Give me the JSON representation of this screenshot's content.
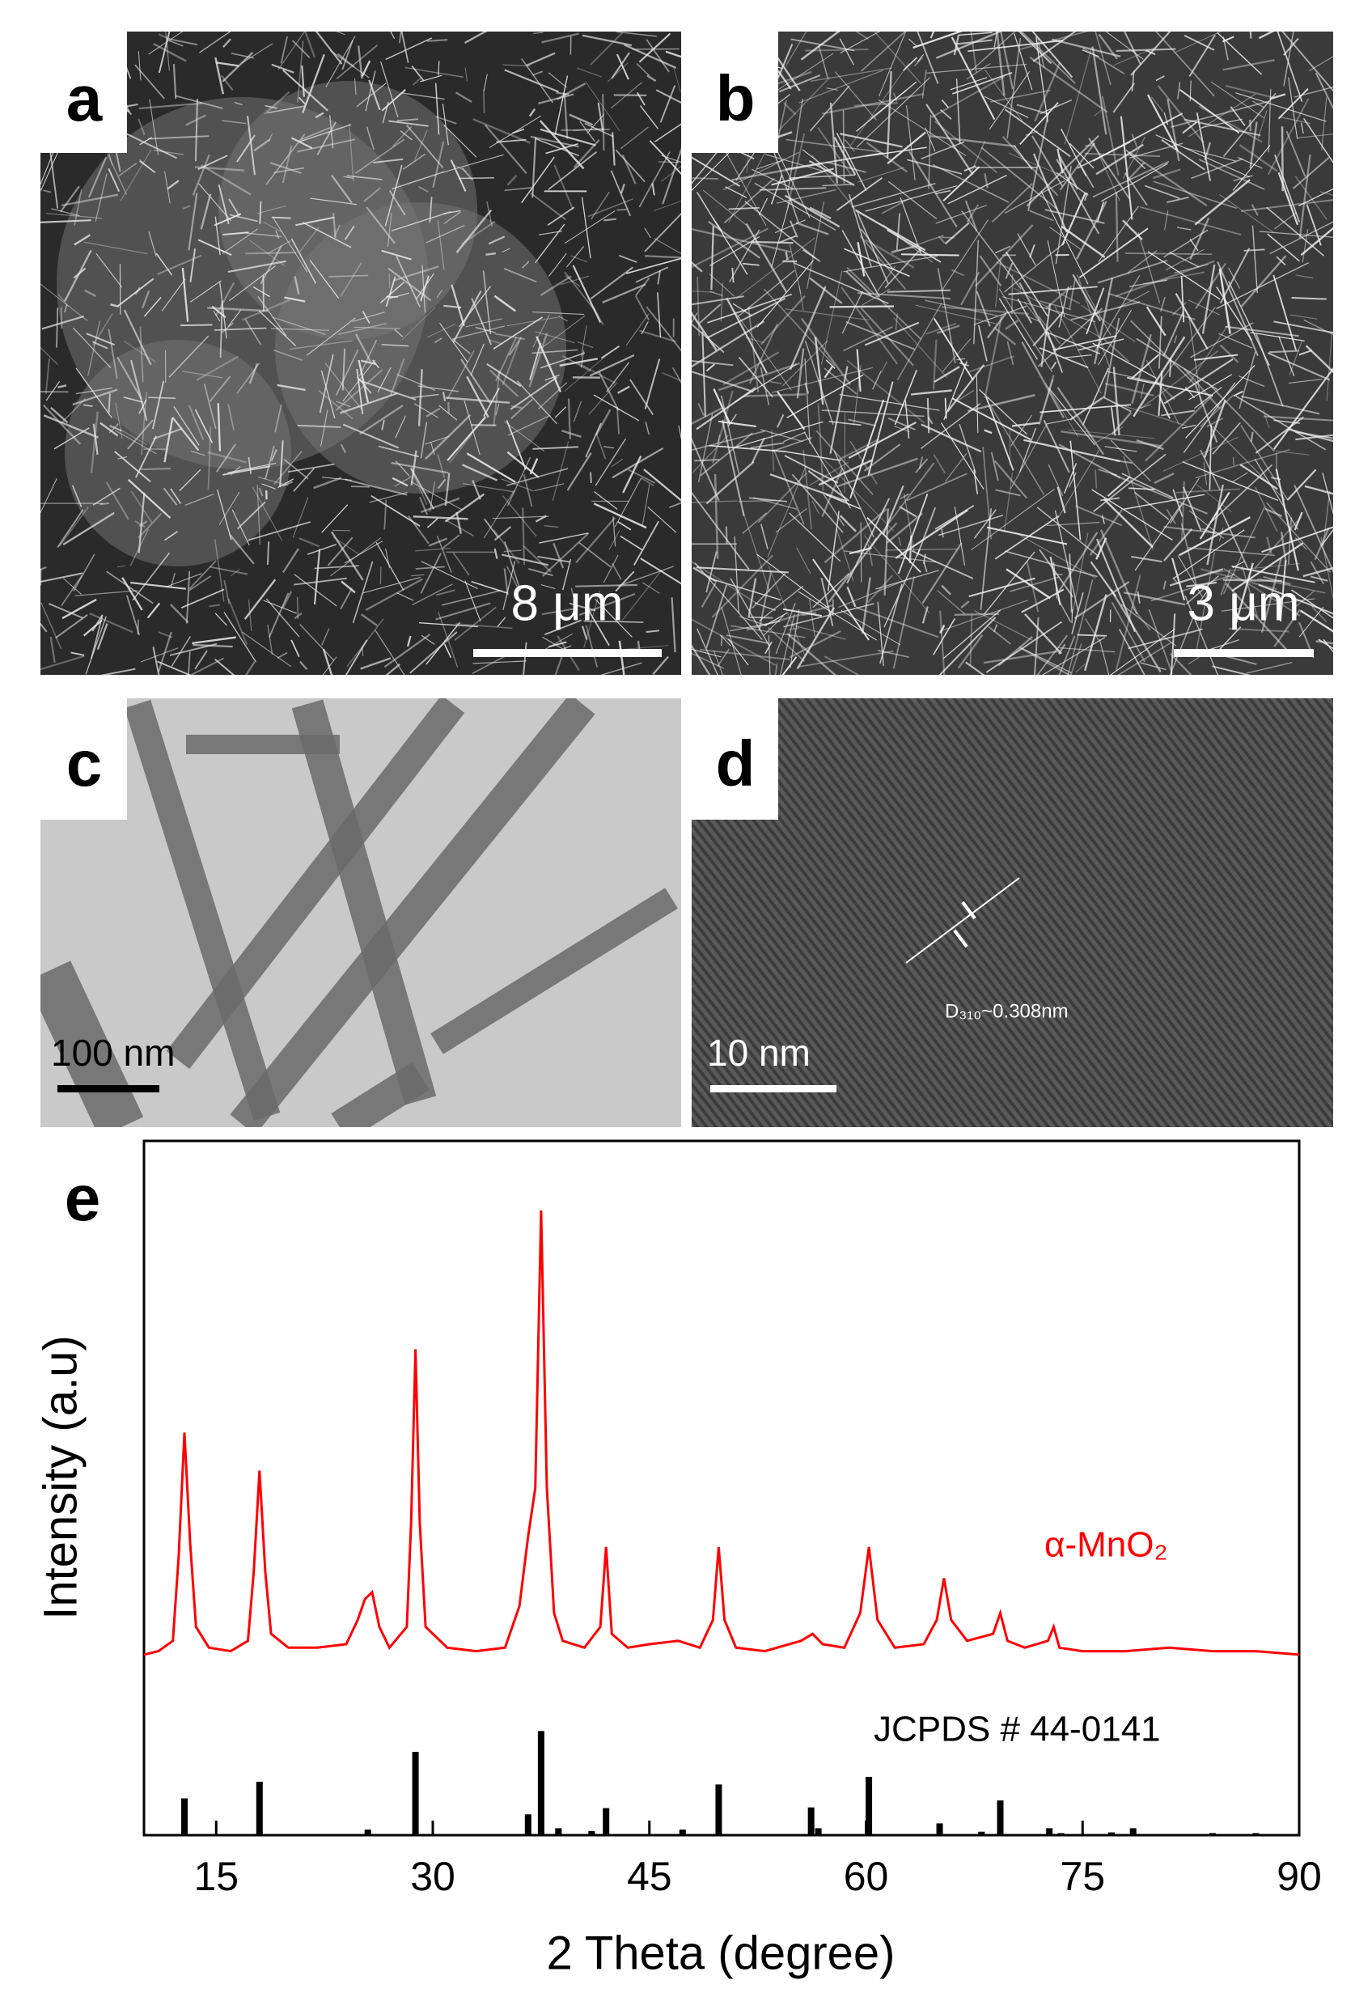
{
  "panels": [
    {
      "label": "a",
      "scale_bar": "8 μm"
    },
    {
      "label": "b",
      "scale_bar": "3 μm"
    },
    {
      "label": "c",
      "scale_bar": "100 nm"
    },
    {
      "label": "d",
      "scale_bar": "10 nm",
      "annotation": "D₃₁₀~0.308nm"
    }
  ],
  "chart_data": {
    "type": "line",
    "panel_label": "e",
    "x_label": "2 Theta (degree)",
    "y_label": "Intensity (a.u)",
    "xlim": [
      10,
      90
    ],
    "xticks": [
      15,
      30,
      45,
      60,
      75,
      90
    ],
    "ylim": [
      0,
      100
    ],
    "series": [
      {
        "name": "α-MnO₂",
        "color": "#ff0000",
        "style": "line",
        "x": [
          10,
          11,
          12,
          12.4,
          12.8,
          13.2,
          13.6,
          14.5,
          16,
          17.2,
          17.6,
          18,
          18.4,
          18.8,
          20,
          22,
          24,
          24.8,
          25.3,
          25.8,
          26.3,
          27,
          28.2,
          28.5,
          28.8,
          29.1,
          29.5,
          31,
          33,
          35,
          36,
          36.6,
          37.1,
          37.5,
          37.9,
          38.4,
          39,
          40.5,
          41.6,
          42,
          42.4,
          43.5,
          45,
          47,
          48.5,
          49.4,
          49.8,
          50.2,
          51,
          53,
          55.5,
          56.3,
          57,
          58.5,
          59.6,
          60.2,
          60.8,
          62,
          64,
          64.9,
          65.4,
          65.9,
          67,
          68.8,
          69.3,
          69.8,
          71,
          72.6,
          73,
          73.4,
          75,
          78,
          81,
          84,
          87,
          90
        ],
        "values": [
          26,
          26.5,
          28,
          40,
          58,
          42,
          30,
          27,
          26.5,
          28,
          38,
          52.5,
          38,
          29,
          27,
          27,
          27.5,
          31,
          34,
          35,
          30,
          27,
          30,
          45,
          70,
          45,
          30,
          27,
          26.5,
          27,
          33,
          43,
          50,
          90,
          50,
          32,
          28,
          27,
          30,
          41.5,
          29,
          27,
          27.5,
          28,
          27,
          31,
          41.5,
          31,
          27,
          26.5,
          28,
          29,
          27.5,
          27,
          32,
          41.5,
          31,
          27,
          27.5,
          31,
          37,
          31,
          28,
          29,
          32,
          28,
          27,
          28,
          30,
          27,
          26.5,
          26.5,
          27,
          26.5,
          26.5,
          26
        ]
      },
      {
        "name": "JCPDS # 44-0141",
        "color": "#000000",
        "style": "stick",
        "x": [
          12.8,
          18,
          25.5,
          28.8,
          36.6,
          37.5,
          38.7,
          41,
          42,
          47.3,
          49.8,
          56.2,
          56.7,
          60.2,
          65.1,
          68,
          69.3,
          72.7,
          73.5,
          77,
          78.5,
          84,
          87
        ],
        "values": [
          5.3,
          7.7,
          0.8,
          12,
          3,
          15,
          1,
          0.6,
          3.9,
          0.8,
          7.3,
          4,
          1,
          8.4,
          1.7,
          0.5,
          5,
          1,
          0.3,
          0.4,
          1,
          0.3,
          0.3
        ]
      }
    ]
  }
}
